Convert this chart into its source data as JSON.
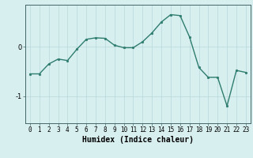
{
  "x": [
    0,
    1,
    2,
    3,
    4,
    5,
    6,
    7,
    8,
    9,
    10,
    11,
    12,
    13,
    14,
    15,
    16,
    17,
    18,
    19,
    20,
    21,
    22,
    23
  ],
  "y": [
    -0.55,
    -0.55,
    -0.35,
    -0.25,
    -0.28,
    -0.05,
    0.15,
    0.18,
    0.17,
    0.03,
    -0.02,
    -0.02,
    0.1,
    0.28,
    0.5,
    0.65,
    0.63,
    0.2,
    -0.42,
    -0.62,
    -0.62,
    -1.2,
    -0.48,
    -0.52
  ],
  "line_color": "#2e7d6e",
  "marker": "o",
  "markersize": 2.0,
  "linewidth": 1.0,
  "bg_color": "#d8eff0",
  "grid_color": "#b8d8da",
  "xlabel": "Humidex (Indice chaleur)",
  "xlabel_fontsize": 7,
  "xlabel_weight": "bold",
  "yticks": [
    0,
    -1
  ],
  "ylim": [
    -1.55,
    0.85
  ],
  "xlim": [
    -0.5,
    23.5
  ],
  "xtick_labels": [
    "0",
    "1",
    "2",
    "3",
    "4",
    "5",
    "6",
    "7",
    "8",
    "9",
    "10",
    "11",
    "12",
    "13",
    "14",
    "15",
    "16",
    "17",
    "18",
    "19",
    "20",
    "21",
    "22",
    "23"
  ],
  "tick_fontsize": 5.5,
  "spine_color": "#446666"
}
